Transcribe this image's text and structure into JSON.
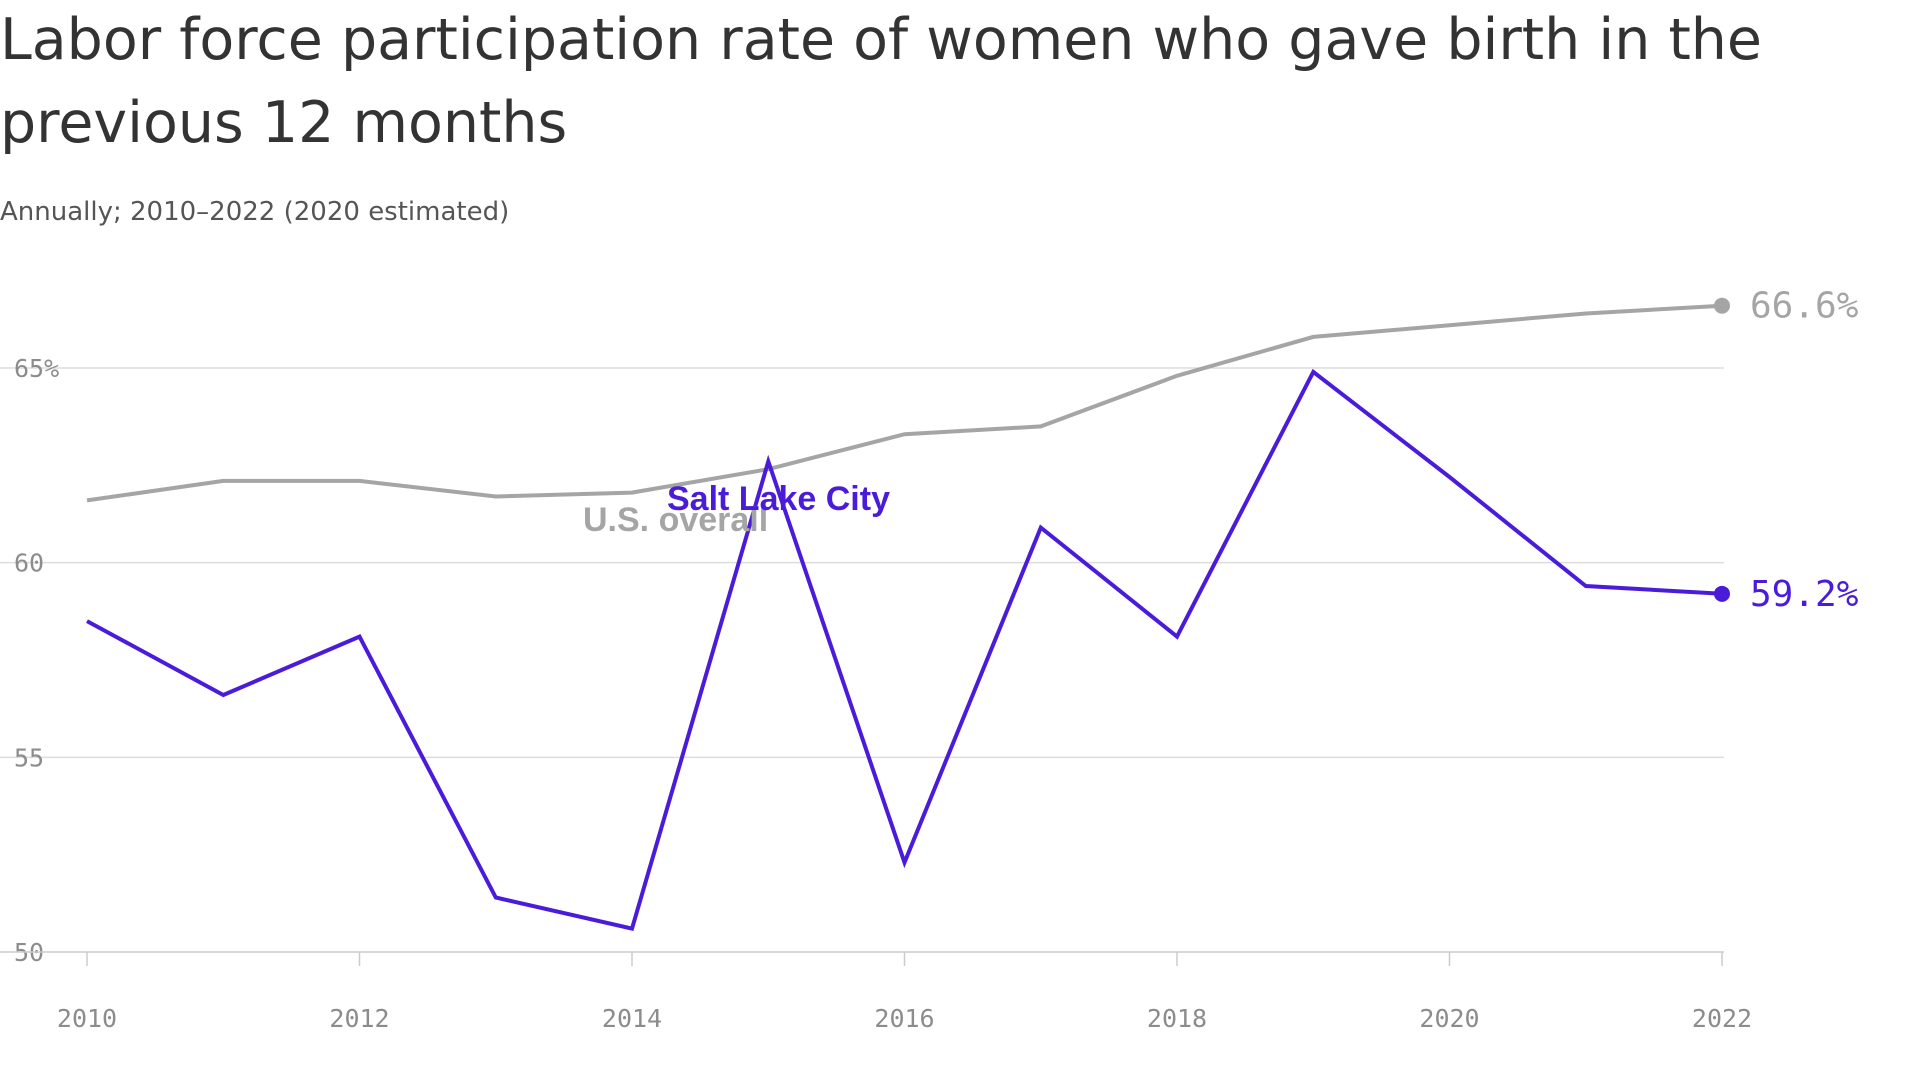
{
  "chart_data": {
    "type": "line",
    "title_lines": [
      "Labor force participation rate of women who gave birth in the",
      "previous 12 months"
    ],
    "subtitle": "Annually; 2010–2022 (2020 estimated)",
    "x": [
      2010,
      2011,
      2012,
      2013,
      2014,
      2015,
      2016,
      2017,
      2018,
      2019,
      2020,
      2021,
      2022
    ],
    "x_tick_labels": [
      "2010",
      "2012",
      "2014",
      "2016",
      "2018",
      "2020",
      "2022"
    ],
    "y_tick_labels": [
      "65%",
      "60",
      "55",
      "50"
    ],
    "ylim": [
      50,
      66.6
    ],
    "grid": true,
    "series": [
      {
        "name": "U.S. overall",
        "color": "#a5a5a5",
        "values": [
          61.6,
          62.1,
          62.1,
          61.7,
          61.8,
          62.4,
          63.3,
          63.5,
          64.8,
          65.8,
          66.1,
          66.4,
          66.6
        ],
        "end_label": "66.6%"
      },
      {
        "name": "Salt Lake City",
        "color": "#4a1cd9",
        "values": [
          58.5,
          56.6,
          58.1,
          51.4,
          50.6,
          62.6,
          52.3,
          60.9,
          58.1,
          64.9,
          62.2,
          59.4,
          59.2
        ],
        "end_label": "59.2%"
      }
    ]
  }
}
